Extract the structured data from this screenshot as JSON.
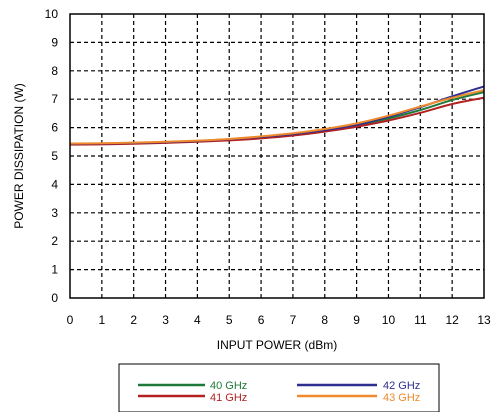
{
  "chart_data": {
    "type": "line",
    "xlabel": "INPUT POWER (dBm)",
    "ylabel": "POWER DISSIPATION (W)",
    "xlim": [
      0,
      13
    ],
    "ylim": [
      0,
      10
    ],
    "xticks": [
      "0",
      "1",
      "2",
      "3",
      "4",
      "5",
      "6",
      "7",
      "8",
      "9",
      "10",
      "11",
      "12",
      "13"
    ],
    "yticks": [
      "0",
      "1",
      "2",
      "3",
      "4",
      "5",
      "6",
      "7",
      "8",
      "9",
      "10"
    ],
    "grid": "dashed",
    "legend_position": "bottom",
    "x": [
      0,
      1,
      2,
      3,
      4,
      5,
      6,
      7,
      8,
      9,
      10,
      11,
      12,
      13
    ],
    "series": [
      {
        "name": "40 GHz",
        "color": "#1f7a3a",
        "values": [
          5.42,
          5.43,
          5.45,
          5.48,
          5.52,
          5.58,
          5.66,
          5.76,
          5.9,
          6.08,
          6.32,
          6.62,
          6.97,
          7.25
        ]
      },
      {
        "name": "41 GHz",
        "color": "#b22222",
        "values": [
          5.4,
          5.41,
          5.43,
          5.46,
          5.5,
          5.55,
          5.62,
          5.72,
          5.86,
          6.03,
          6.25,
          6.52,
          6.83,
          7.05
        ]
      },
      {
        "name": "42 GHz",
        "color": "#2e2e8f",
        "values": [
          5.43,
          5.44,
          5.46,
          5.49,
          5.53,
          5.59,
          5.67,
          5.77,
          5.91,
          6.1,
          6.38,
          6.72,
          7.1,
          7.45
        ]
      },
      {
        "name": "43 GHz",
        "color": "#ef8a2e",
        "values": [
          5.44,
          5.45,
          5.47,
          5.5,
          5.54,
          5.6,
          5.69,
          5.8,
          5.95,
          6.15,
          6.42,
          6.74,
          7.05,
          7.32
        ]
      }
    ]
  }
}
